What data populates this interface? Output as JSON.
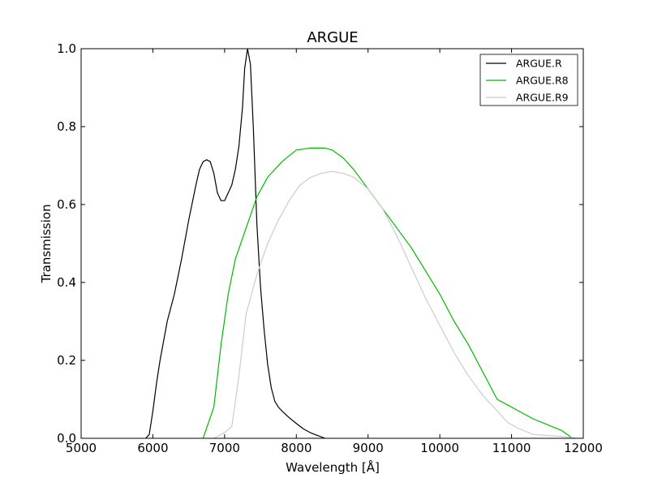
{
  "chart_data": {
    "type": "line",
    "title": "ARGUE",
    "xlabel": "Wavelength [Å]",
    "ylabel": "Transmission",
    "xlim": [
      5000,
      12000
    ],
    "ylim": [
      0,
      1.0
    ],
    "xticks": [
      5000,
      6000,
      7000,
      8000,
      9000,
      10000,
      11000,
      12000
    ],
    "xtick_labels": [
      "5000",
      "6000",
      "7000",
      "8000",
      "9000",
      "10000",
      "11000",
      "12000"
    ],
    "yticks": [
      0,
      0.2,
      0.4,
      0.6,
      0.8,
      1.0
    ],
    "ytick_labels": [
      "0.0",
      "0.2",
      "0.4",
      "0.6",
      "0.8",
      "1.0"
    ],
    "grid": false,
    "legend_position": "top-right",
    "series": [
      {
        "name": "ARGUE.R",
        "color": "#000000",
        "points": [
          [
            5900,
            0.0
          ],
          [
            5950,
            0.01
          ],
          [
            6000,
            0.07
          ],
          [
            6050,
            0.14
          ],
          [
            6100,
            0.2
          ],
          [
            6200,
            0.3
          ],
          [
            6300,
            0.37
          ],
          [
            6400,
            0.46
          ],
          [
            6500,
            0.56
          ],
          [
            6600,
            0.65
          ],
          [
            6650,
            0.69
          ],
          [
            6700,
            0.71
          ],
          [
            6750,
            0.715
          ],
          [
            6800,
            0.71
          ],
          [
            6850,
            0.68
          ],
          [
            6900,
            0.63
          ],
          [
            6950,
            0.61
          ],
          [
            7000,
            0.61
          ],
          [
            7050,
            0.63
          ],
          [
            7100,
            0.65
          ],
          [
            7150,
            0.69
          ],
          [
            7200,
            0.75
          ],
          [
            7250,
            0.85
          ],
          [
            7280,
            0.95
          ],
          [
            7320,
            1.0
          ],
          [
            7360,
            0.96
          ],
          [
            7400,
            0.8
          ],
          [
            7450,
            0.55
          ],
          [
            7500,
            0.39
          ],
          [
            7550,
            0.28
          ],
          [
            7600,
            0.19
          ],
          [
            7650,
            0.13
          ],
          [
            7700,
            0.095
          ],
          [
            7750,
            0.08
          ],
          [
            7800,
            0.07
          ],
          [
            7900,
            0.053
          ],
          [
            8000,
            0.038
          ],
          [
            8100,
            0.024
          ],
          [
            8200,
            0.014
          ],
          [
            8300,
            0.007
          ],
          [
            8400,
            0.0
          ]
        ]
      },
      {
        "name": "ARGUE.R8",
        "color": "#00bb00",
        "points": [
          [
            6700,
            0.0
          ],
          [
            6850,
            0.08
          ],
          [
            6950,
            0.24
          ],
          [
            7050,
            0.37
          ],
          [
            7150,
            0.46
          ],
          [
            7300,
            0.54
          ],
          [
            7450,
            0.62
          ],
          [
            7600,
            0.67
          ],
          [
            7800,
            0.71
          ],
          [
            8000,
            0.74
          ],
          [
            8200,
            0.745
          ],
          [
            8400,
            0.745
          ],
          [
            8500,
            0.74
          ],
          [
            8650,
            0.72
          ],
          [
            8800,
            0.69
          ],
          [
            9000,
            0.64
          ],
          [
            9200,
            0.59
          ],
          [
            9400,
            0.54
          ],
          [
            9600,
            0.49
          ],
          [
            9800,
            0.43
          ],
          [
            10000,
            0.37
          ],
          [
            10200,
            0.3
          ],
          [
            10400,
            0.24
          ],
          [
            10600,
            0.17
          ],
          [
            10800,
            0.1
          ],
          [
            10950,
            0.085
          ],
          [
            11100,
            0.07
          ],
          [
            11300,
            0.05
          ],
          [
            11500,
            0.035
          ],
          [
            11700,
            0.02
          ],
          [
            11850,
            0.0
          ]
        ]
      },
      {
        "name": "ARGUE.R9",
        "color": "#cccccc",
        "points": [
          [
            6850,
            0.0
          ],
          [
            7000,
            0.015
          ],
          [
            7100,
            0.03
          ],
          [
            7200,
            0.16
          ],
          [
            7300,
            0.32
          ],
          [
            7450,
            0.42
          ],
          [
            7600,
            0.5
          ],
          [
            7750,
            0.56
          ],
          [
            7900,
            0.61
          ],
          [
            8050,
            0.65
          ],
          [
            8200,
            0.67
          ],
          [
            8350,
            0.68
          ],
          [
            8500,
            0.685
          ],
          [
            8650,
            0.68
          ],
          [
            8800,
            0.67
          ],
          [
            9000,
            0.64
          ],
          [
            9200,
            0.59
          ],
          [
            9400,
            0.52
          ],
          [
            9600,
            0.44
          ],
          [
            9800,
            0.36
          ],
          [
            10000,
            0.29
          ],
          [
            10200,
            0.22
          ],
          [
            10400,
            0.16
          ],
          [
            10600,
            0.11
          ],
          [
            10800,
            0.07
          ],
          [
            10950,
            0.04
          ],
          [
            11100,
            0.025
          ],
          [
            11300,
            0.01
          ],
          [
            11500,
            0.007
          ],
          [
            11700,
            0.005
          ],
          [
            11900,
            0.0
          ]
        ]
      }
    ]
  }
}
